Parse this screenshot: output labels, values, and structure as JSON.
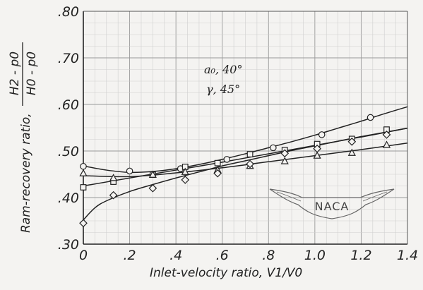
{
  "chart_data": {
    "type": "line",
    "xlabel": "Inlet-velocity ratio, V1/V0",
    "ylabel": "Ram-recovery ratio,",
    "ylabel_fraction": {
      "numerator": "H2 - p0",
      "denominator": "H0 - p0"
    },
    "xlim": [
      0,
      1.4
    ],
    "ylim": [
      0.3,
      0.8
    ],
    "x_ticks": [
      "0",
      ".2",
      ".4",
      ".6",
      ".8",
      "1.0",
      "1.2",
      "1.4"
    ],
    "y_ticks": [
      ".30",
      ".40",
      ".50",
      ".60",
      ".70",
      ".80"
    ],
    "grid": true,
    "annotations": [
      "a₀, 40°",
      "γ, 45°"
    ],
    "logo_text": "NACA",
    "series": [
      {
        "marker": "circle",
        "x": [
          0,
          0.2,
          0.42,
          0.62,
          0.82,
          1.03,
          1.24
        ],
        "y": [
          0.467,
          0.457,
          0.462,
          0.482,
          0.507,
          0.535,
          0.572
        ],
        "curve_x": [
          0,
          0.1,
          0.2,
          0.3,
          0.4,
          0.5,
          0.6,
          0.7,
          0.8,
          0.9,
          1.0,
          1.1,
          1.2,
          1.3,
          1.4
        ],
        "curve_y": [
          0.468,
          0.459,
          0.454,
          0.456,
          0.462,
          0.471,
          0.482,
          0.494,
          0.507,
          0.52,
          0.534,
          0.549,
          0.564,
          0.58,
          0.595
        ]
      },
      {
        "marker": "square",
        "x": [
          0,
          0.13,
          0.3,
          0.44,
          0.58,
          0.72,
          0.87,
          1.01,
          1.16,
          1.31
        ],
        "y": [
          0.422,
          0.434,
          0.449,
          0.466,
          0.474,
          0.493,
          0.502,
          0.515,
          0.526,
          0.546
        ],
        "curve_x": [
          0,
          0.2,
          0.4,
          0.6,
          0.8,
          1.0,
          1.2,
          1.4
        ],
        "curve_y": [
          0.425,
          0.442,
          0.459,
          0.476,
          0.494,
          0.512,
          0.53,
          0.549
        ]
      },
      {
        "marker": "triangle",
        "x": [
          0,
          0.13,
          0.3,
          0.44,
          0.58,
          0.72,
          0.87,
          1.01,
          1.16,
          1.31
        ],
        "y": [
          0.452,
          0.442,
          0.449,
          0.455,
          0.459,
          0.468,
          0.478,
          0.49,
          0.496,
          0.513
        ],
        "curve_x": [
          0,
          0.2,
          0.4,
          0.6,
          0.8,
          1.0,
          1.2,
          1.4
        ],
        "curve_y": [
          0.447,
          0.445,
          0.453,
          0.464,
          0.477,
          0.49,
          0.503,
          0.517
        ]
      },
      {
        "marker": "diamond",
        "x": [
          0,
          0.13,
          0.3,
          0.44,
          0.58,
          0.72,
          0.87,
          1.01,
          1.16,
          1.31
        ],
        "y": [
          0.345,
          0.405,
          0.42,
          0.438,
          0.452,
          0.472,
          0.495,
          0.505,
          0.52,
          0.535
        ],
        "curve_x": [
          0,
          0.05,
          0.1,
          0.2,
          0.3,
          0.4,
          0.5,
          0.6,
          0.7,
          0.8,
          0.9,
          1.0,
          1.1,
          1.2,
          1.3,
          1.4
        ],
        "curve_y": [
          0.352,
          0.378,
          0.393,
          0.413,
          0.428,
          0.442,
          0.455,
          0.468,
          0.479,
          0.49,
          0.501,
          0.511,
          0.521,
          0.531,
          0.54,
          0.549
        ]
      }
    ]
  }
}
